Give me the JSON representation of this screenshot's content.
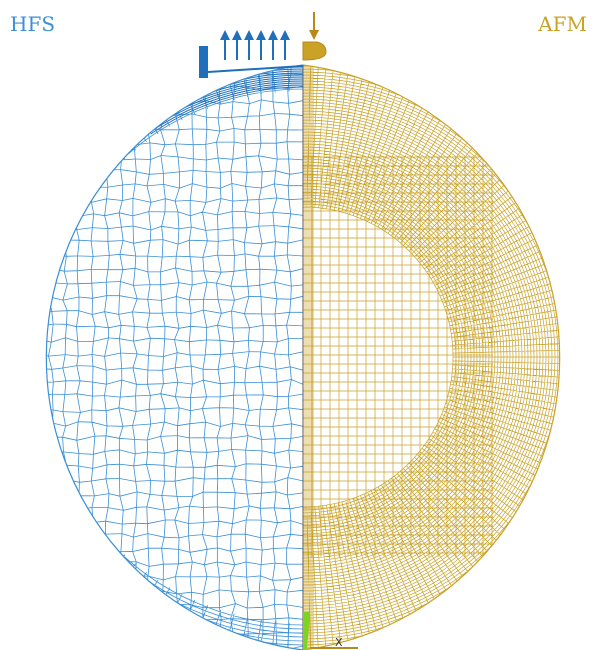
{
  "labels": {
    "left": "HFS",
    "right": "AFM",
    "axis": "X"
  },
  "colors": {
    "left_mesh": "#3a8fd6",
    "left_dark": "#1f6fba",
    "right_mesh": "#c9a227",
    "right_dark": "#b8891a",
    "support": "#7ed321"
  },
  "icons": {
    "traction_arrows": "up-arrows-icon",
    "load_arrow": "down-arrow-icon",
    "left_plate": "rigid-plate-icon",
    "right_indenter": "indenter-icon"
  }
}
